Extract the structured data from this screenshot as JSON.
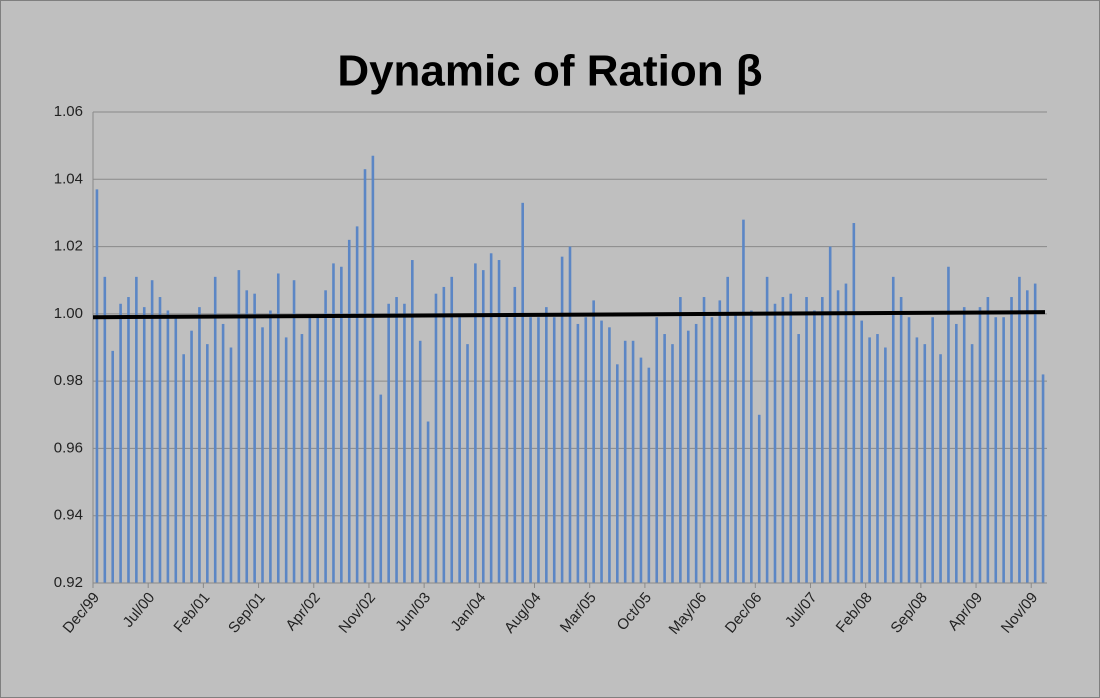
{
  "chart_data": {
    "type": "bar",
    "title": "Dynamic of Ration β",
    "categories": [
      "Dec/99",
      null,
      null,
      null,
      null,
      null,
      null,
      "Jul/00",
      null,
      null,
      null,
      null,
      null,
      null,
      "Feb/01",
      null,
      null,
      null,
      null,
      null,
      null,
      "Sep/01",
      null,
      null,
      null,
      null,
      null,
      null,
      "Apr/02",
      null,
      null,
      null,
      null,
      null,
      null,
      "Nov/02",
      null,
      null,
      null,
      null,
      null,
      null,
      "Jun/03",
      null,
      null,
      null,
      null,
      null,
      null,
      "Jan/04",
      null,
      null,
      null,
      null,
      null,
      null,
      "Aug/04",
      null,
      null,
      null,
      null,
      null,
      null,
      "Mar/05",
      null,
      null,
      null,
      null,
      null,
      null,
      "Oct/05",
      null,
      null,
      null,
      null,
      null,
      null,
      "May/06",
      null,
      null,
      null,
      null,
      null,
      null,
      "Dec/06",
      null,
      null,
      null,
      null,
      null,
      null,
      "Jul/07",
      null,
      null,
      null,
      null,
      null,
      null,
      "Feb/08",
      null,
      null,
      null,
      null,
      null,
      null,
      "Sep/08",
      null,
      null,
      null,
      null,
      null,
      null,
      "Apr/09",
      null,
      null,
      null,
      null,
      null,
      null,
      "Nov/09",
      null
    ],
    "values": [
      1.037,
      1.011,
      0.989,
      1.003,
      1.005,
      1.011,
      1.002,
      1.01,
      1.005,
      1.001,
      0.999,
      0.988,
      0.995,
      1.002,
      0.991,
      1.011,
      0.997,
      0.99,
      1.013,
      1.007,
      1.006,
      0.996,
      1.001,
      1.012,
      0.993,
      1.01,
      0.994,
      0.999,
      0.999,
      1.007,
      1.015,
      1.014,
      1.022,
      1.026,
      1.043,
      1.047,
      0.976,
      1.003,
      1.005,
      1.003,
      1.016,
      0.992,
      0.968,
      1.006,
      1.008,
      1.011,
      0.999,
      0.991,
      1.015,
      1.013,
      1.018,
      1.016,
      0.999,
      1.008,
      1.033,
      0.999,
      0.999,
      1.002,
      0.999,
      1.017,
      1.02,
      0.997,
      0.999,
      1.004,
      0.998,
      0.996,
      0.985,
      0.992,
      0.992,
      0.987,
      0.984,
      0.999,
      0.994,
      0.991,
      1.005,
      0.995,
      0.997,
      1.005,
      0.999,
      1.004,
      1.011,
      1.0,
      1.028,
      1.001,
      0.97,
      1.011,
      1.003,
      1.005,
      1.006,
      0.994,
      1.005,
      1.001,
      1.005,
      1.02,
      1.007,
      1.009,
      1.027,
      0.998,
      0.993,
      0.994,
      0.99,
      1.011,
      1.005,
      0.999,
      0.993,
      0.991,
      0.999,
      0.988,
      1.014,
      0.997,
      1.002,
      0.991,
      1.002,
      1.005,
      0.999,
      0.999,
      1.005,
      1.011,
      1.007,
      1.009,
      0.982
    ],
    "color": "#5b86c5",
    "trend_line": [
      0.999,
      1.0005
    ],
    "trend_color": "#000000",
    "ylim": [
      0.92,
      1.06
    ],
    "yticks": [
      {
        "value": 0.92,
        "label": "0.92"
      },
      {
        "value": 0.94,
        "label": "0.94"
      },
      {
        "value": 0.96,
        "label": "0.96"
      },
      {
        "value": 0.98,
        "label": "0.98"
      },
      {
        "value": 1.0,
        "label": "1.00"
      },
      {
        "value": 1.02,
        "label": "1.02"
      },
      {
        "value": 1.04,
        "label": "1.04"
      },
      {
        "value": 1.06,
        "label": "1.06"
      }
    ],
    "grid": true
  }
}
